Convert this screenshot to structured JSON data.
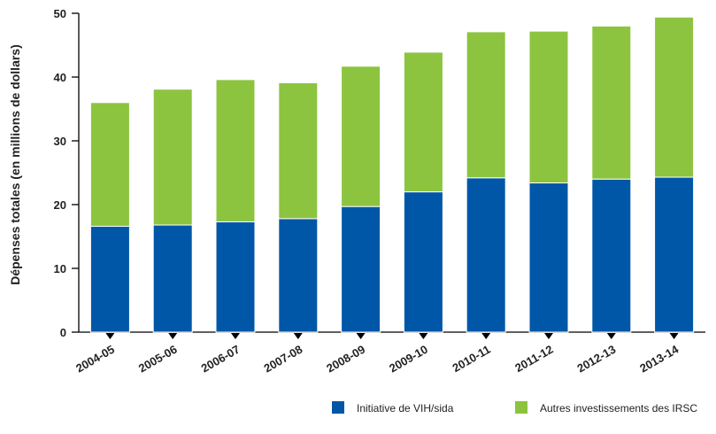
{
  "chart_data": {
    "type": "bar",
    "stacked": true,
    "categories": [
      "2004-05",
      "2005-06",
      "2006-07",
      "2007-08",
      "2008-09",
      "2009-10",
      "2010-11",
      "2011-12",
      "2012-13",
      "2013-14"
    ],
    "series": [
      {
        "name": "Initiative de VIH/sida",
        "color": "#0057a8",
        "values": [
          16.6,
          16.8,
          17.3,
          17.8,
          19.7,
          22.0,
          24.2,
          23.4,
          24.0,
          24.3
        ]
      },
      {
        "name": "Autres investissements des IRSC",
        "color": "#8cc43f",
        "values": [
          19.4,
          21.3,
          22.3,
          21.3,
          22.0,
          21.9,
          22.9,
          23.8,
          24.0,
          25.1
        ]
      }
    ],
    "ylabel": "Dépenses totales (en millions de dollars)",
    "ylim": [
      0,
      50
    ],
    "yticks": [
      0,
      10,
      20,
      30,
      40,
      50
    ],
    "grid": false,
    "legend": "bottom-right"
  }
}
